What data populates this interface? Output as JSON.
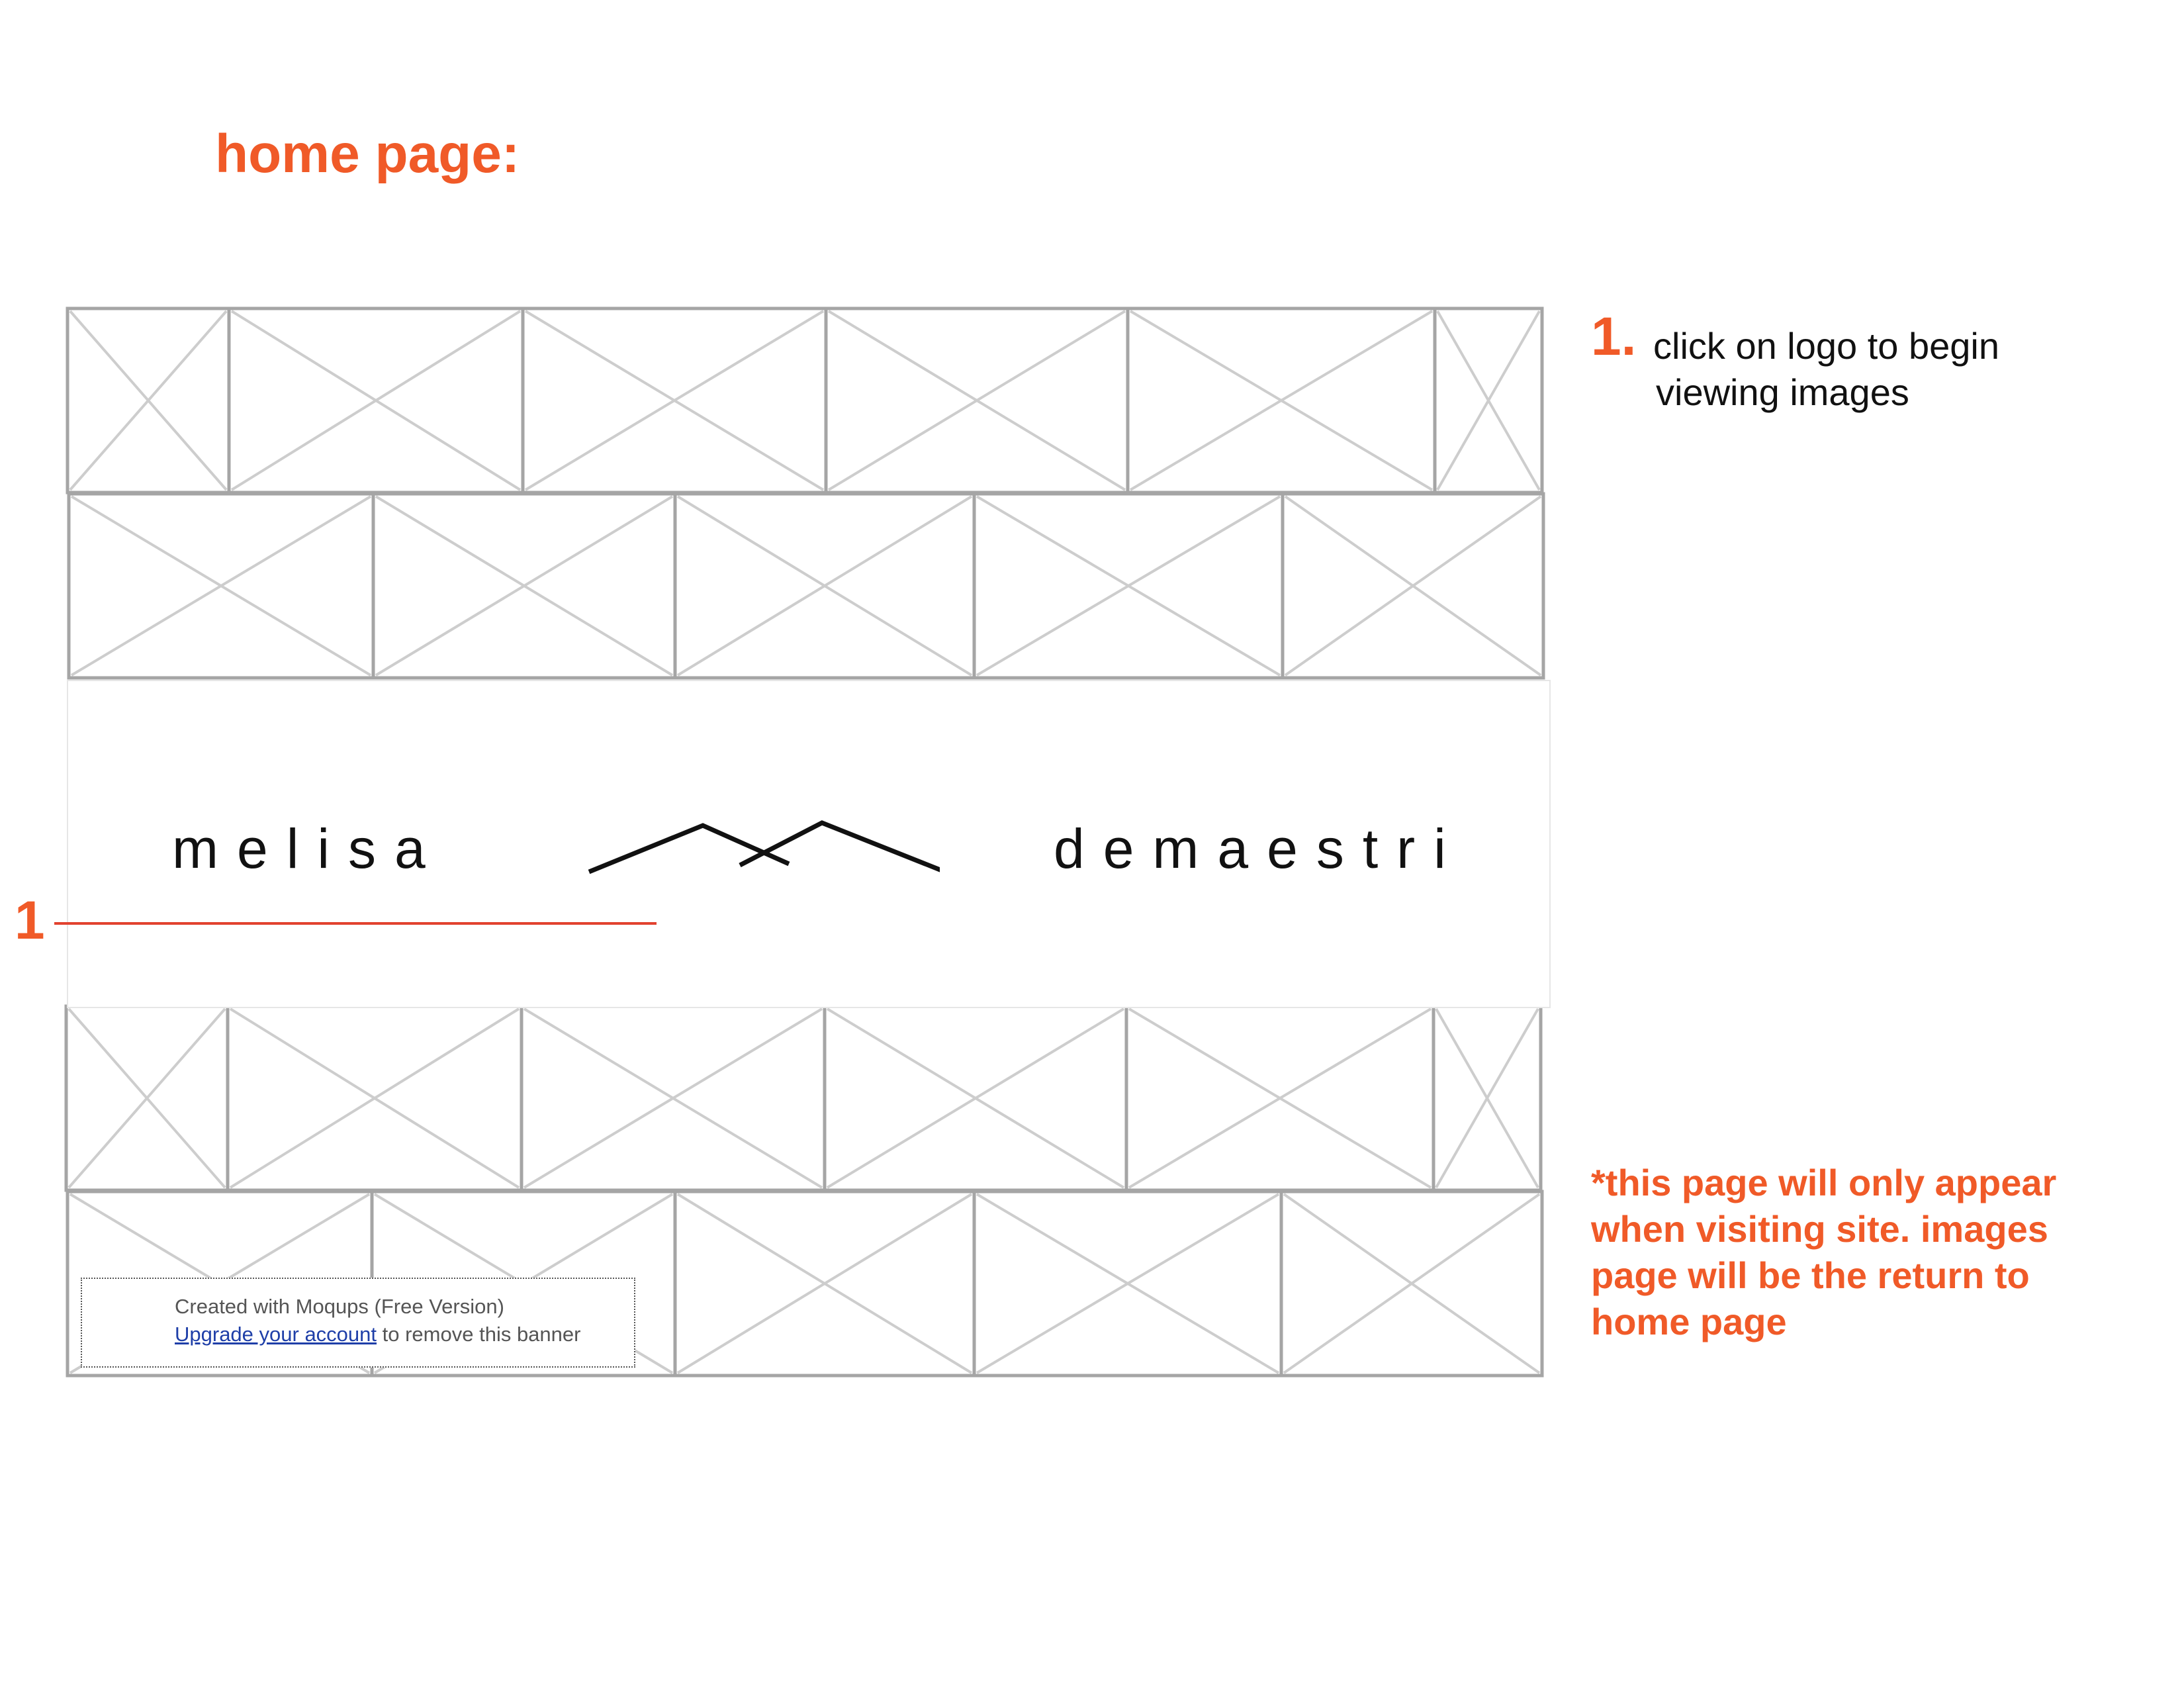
{
  "page": {
    "title": "home page:"
  },
  "wireframe": {
    "image_placeholder_rows": 4,
    "placeholder_icon": "image-placeholder-icon"
  },
  "logo": {
    "first_name": "melisa",
    "last_name": "demaestri",
    "mark_icon": "logo-mark-icon"
  },
  "annotation_marker": {
    "number": "1",
    "color": "#e2422f"
  },
  "banner": {
    "line1": "Created with Moqups (Free Version)",
    "link_text": "Upgrade your account",
    "line2_suffix": " to remove this banner"
  },
  "notes": {
    "step_number": "1.",
    "step_line1": "click on logo to begin",
    "step_line2": "viewing images",
    "footer_line1": "*this page will only appear",
    "footer_line2": "when visiting site. images",
    "footer_line3": "page will be the return to",
    "footer_line4": "home page"
  },
  "colors": {
    "accent": "#f05a28",
    "placeholder_border": "#a5a5a5",
    "placeholder_cross": "#cdcdcd",
    "link": "#1f3fa8"
  }
}
